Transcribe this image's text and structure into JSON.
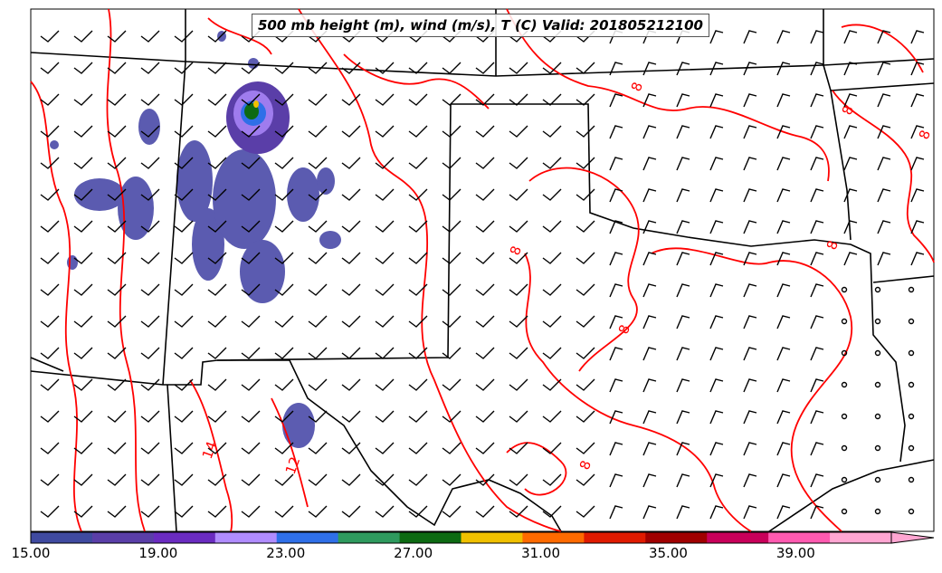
{
  "title": "500 mb height (m), wind (m/s), T (C) Valid: 201805212100",
  "colorbar": {
    "tick_labels": [
      "15.00",
      "19.00",
      "23.00",
      "27.00",
      "31.00",
      "35.00",
      "39.00"
    ],
    "colors": [
      "#3f4aa0",
      "#5a3ea8",
      "#6a2bc0",
      "#b08cff",
      "#2f6fe8",
      "#2e9a5e",
      "#0d6a12",
      "#f0c000",
      "#ff6a00",
      "#e01a00",
      "#a00000",
      "#c8005a",
      "#ff5ab0",
      "#ffa6d2"
    ],
    "min": 15,
    "max": 42
  },
  "contour_labels": [
    "8",
    "8",
    "8",
    "8",
    "8",
    "8",
    "8",
    "14",
    "12"
  ],
  "colors": {
    "contour": "#ff0000",
    "borders": "#000000",
    "background": "#ffffff"
  }
}
